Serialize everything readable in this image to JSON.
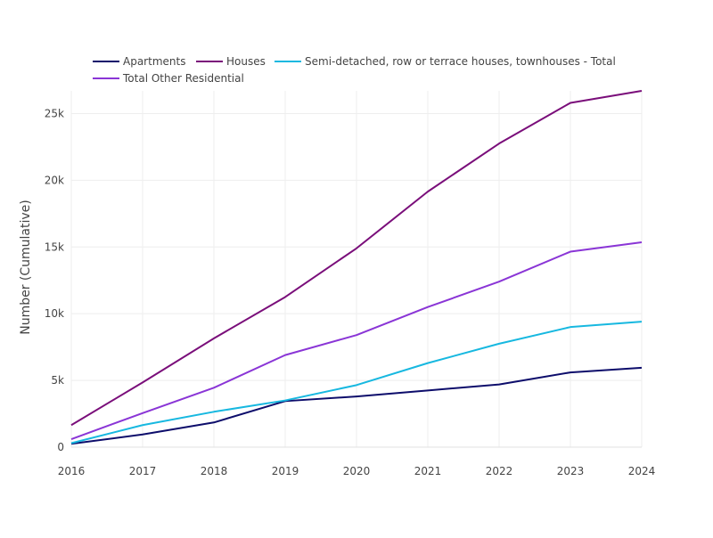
{
  "chart_data": {
    "type": "line",
    "title": "",
    "xlabel": "",
    "ylabel": "Number (Cumulative)",
    "x": [
      2016,
      2017,
      2018,
      2019,
      2020,
      2021,
      2022,
      2023,
      2024
    ],
    "x_ticks": [
      "2016",
      "2017",
      "2018",
      "2019",
      "2020",
      "2021",
      "2022",
      "2023",
      "2024"
    ],
    "xlim": [
      2016,
      2024
    ],
    "ylim": [
      0,
      26700
    ],
    "y_ticks": [
      0,
      5000,
      10000,
      15000,
      20000,
      25000
    ],
    "y_tick_labels": [
      "0",
      "5k",
      "10k",
      "15k",
      "20k",
      "25k"
    ],
    "grid": true,
    "legend_position": "top-left",
    "series": [
      {
        "name": "Apartments",
        "color": "#0d0d6b",
        "values": [
          250,
          950,
          1850,
          3450,
          3800,
          4250,
          4700,
          5600,
          5950
        ]
      },
      {
        "name": "Houses",
        "color": "#7a0e7a",
        "values": [
          1650,
          4850,
          8150,
          11250,
          14900,
          19150,
          22750,
          25800,
          26700
        ]
      },
      {
        "name": "Semi-detached, row or terrace houses, townhouses - Total",
        "color": "#17b8e0",
        "values": [
          300,
          1650,
          2650,
          3500,
          4650,
          6300,
          7750,
          9000,
          9400
        ]
      },
      {
        "name": "Total Other Residential",
        "color": "#8a35d6",
        "values": [
          600,
          2550,
          4450,
          6900,
          8400,
          10500,
          12400,
          14650,
          15350
        ]
      }
    ]
  }
}
